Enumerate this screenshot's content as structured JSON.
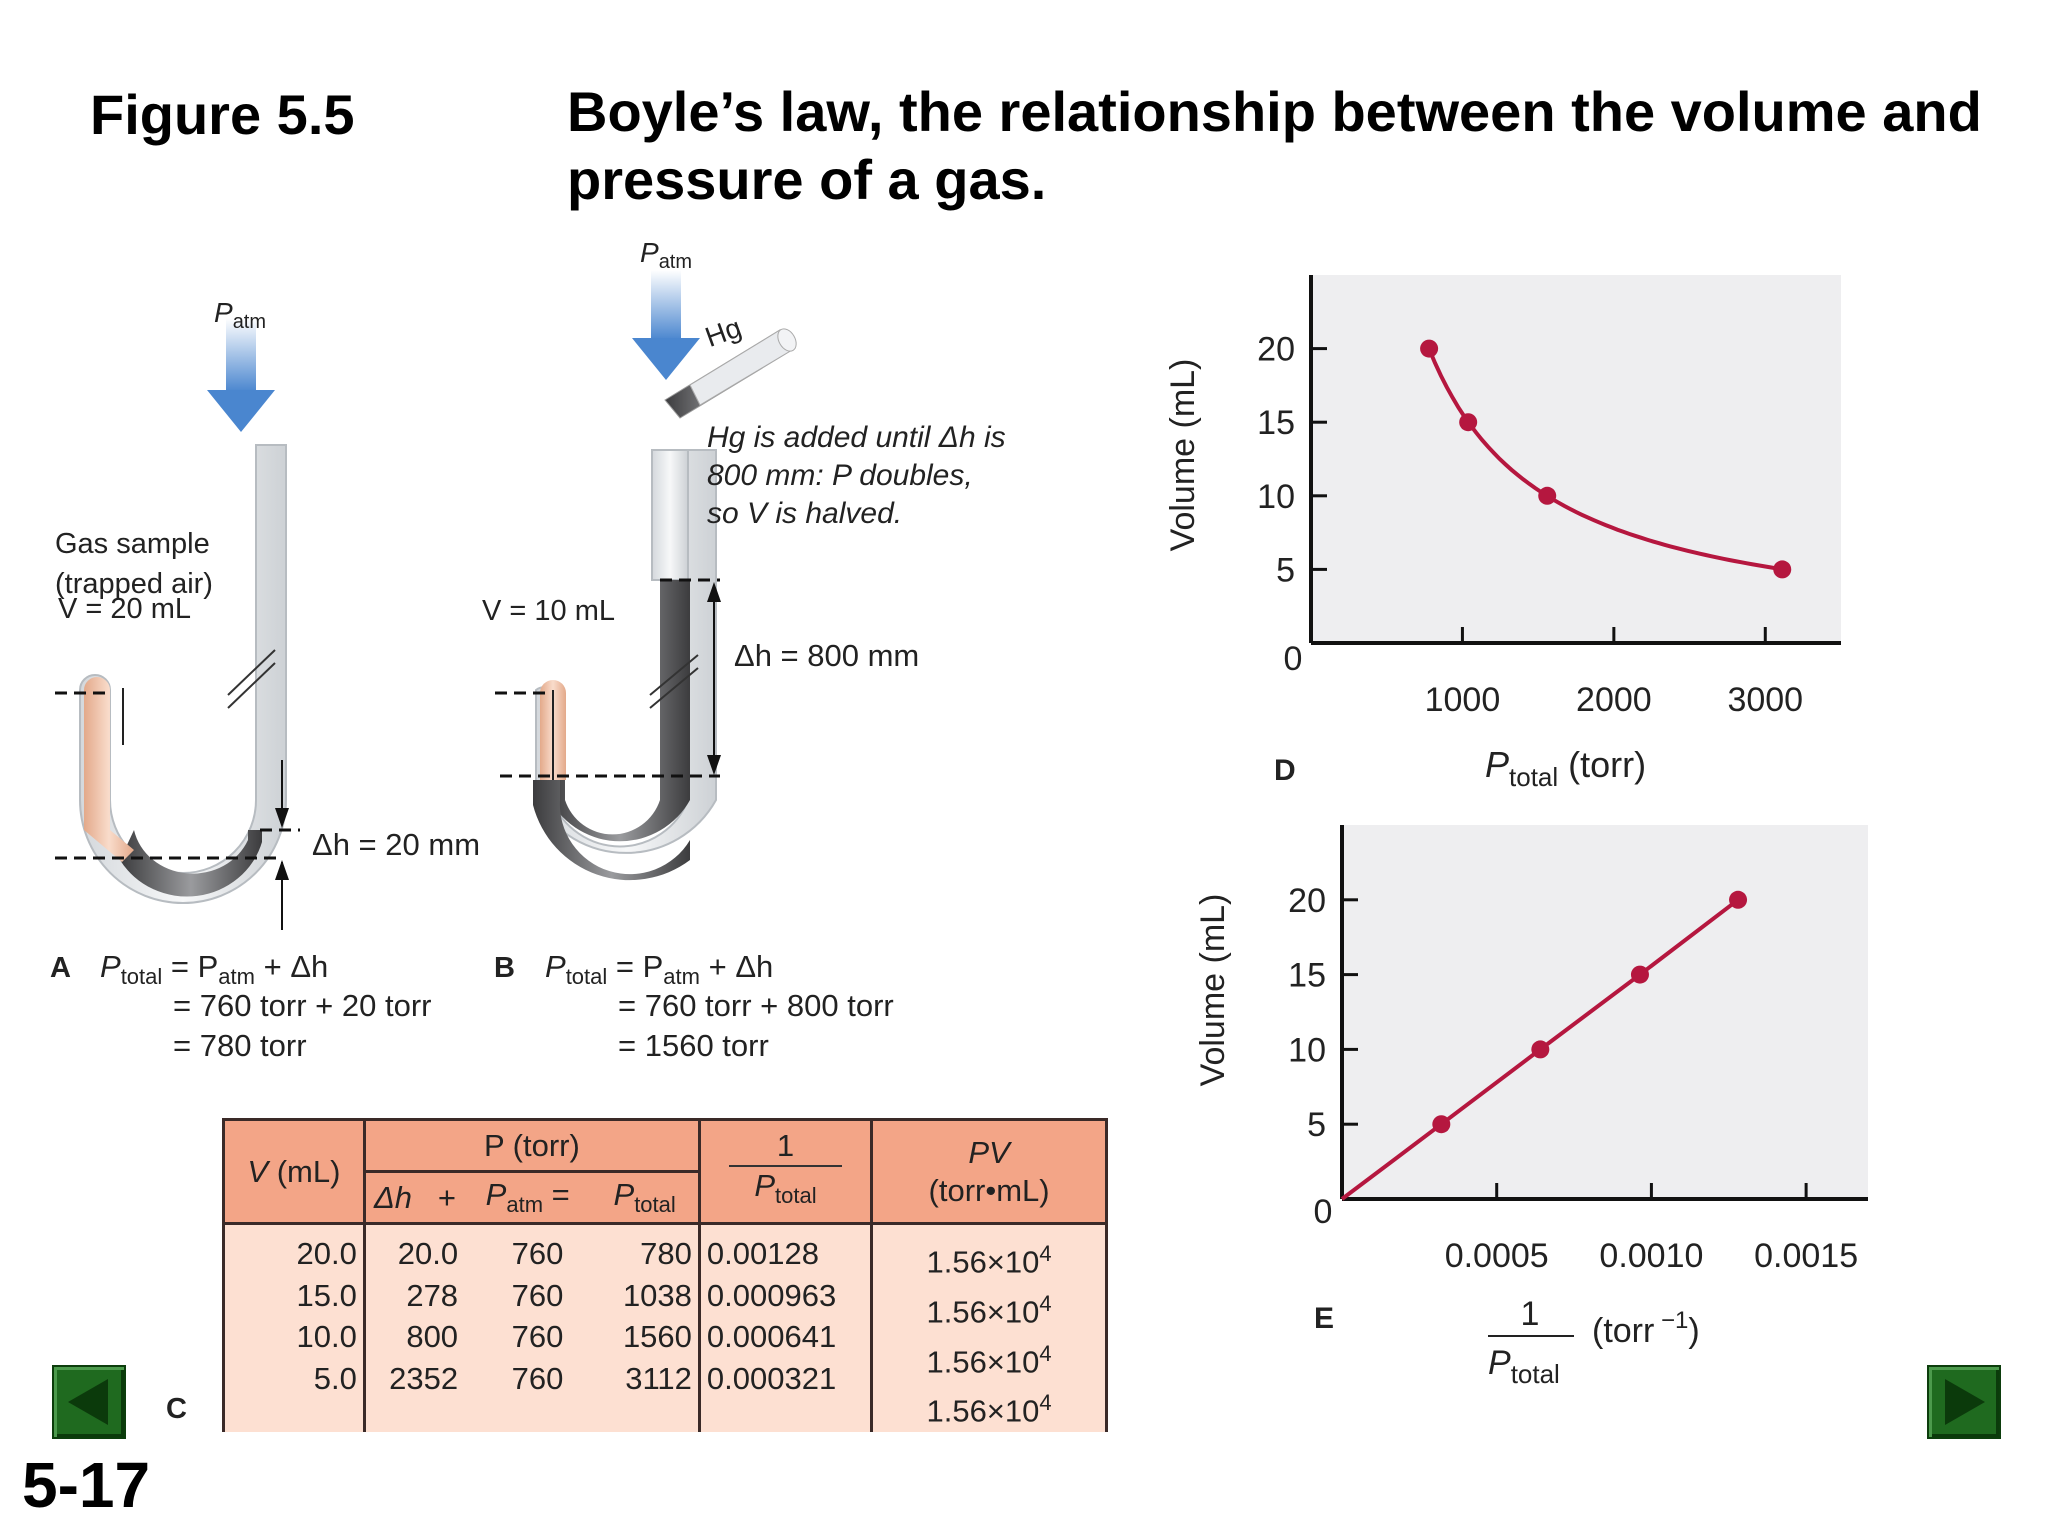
{
  "figure_label": "Figure 5.5",
  "figure_title": "Boyle’s law, the relationship between the volume and pressure of a gas.",
  "slide_number": "5-17",
  "panel_a": {
    "letter": "A",
    "patm": "P",
    "patm_sub": "atm",
    "gas_line1": "Gas sample",
    "gas_line2": "(trapped air)",
    "volume": "V = 20 mL",
    "dh": "Δh = 20 mm",
    "eq1": "P",
    "eq1_sub": "total",
    "eq1_rest": " = P",
    "eq1_sub2": "atm",
    "eq1_tail": " + Δh",
    "eq2": "= 760 torr + 20 torr",
    "eq3": "= 780 torr"
  },
  "panel_b": {
    "letter": "B",
    "patm": "P",
    "patm_sub": "atm",
    "hg": "Hg",
    "note1": "Hg is added until Δh is",
    "note2": "800 mm: P doubles,",
    "note3": "so V is halved.",
    "volume": "V = 10 mL",
    "dh": "Δh = 800 mm",
    "eq1": "P",
    "eq1_sub": "total",
    "eq1_rest": " = P",
    "eq1_sub2": "atm",
    "eq1_tail": " + Δh",
    "eq2": "= 760 torr + 800 torr",
    "eq3": "= 1560 torr"
  },
  "table": {
    "letter": "C",
    "h_v": "V (mL)",
    "h_p": "P (torr)",
    "h_dh": "Δh",
    "h_plus": "+",
    "h_patm": "P",
    "h_patm_sub": "atm",
    "h_eq": "=",
    "h_ptot": "P",
    "h_ptot_sub": "total",
    "h_inv_num": "1",
    "h_inv_den": "P",
    "h_inv_sub": "total",
    "h_pv": "PV",
    "h_pv_units": "(torr•mL)",
    "v": [
      "20.0",
      "15.0",
      "10.0",
      "5.0"
    ],
    "dh": [
      "20.0",
      "278",
      "800",
      "2352"
    ],
    "patm": [
      "760",
      "760",
      "760",
      "760"
    ],
    "ptot": [
      "780",
      "1038",
      "1560",
      "3112"
    ],
    "inv": [
      "0.00128",
      "0.000963",
      "0.000641",
      "0.000321"
    ],
    "pv_mant": "1.56×10",
    "pv_exp": "4"
  },
  "chart_data": [
    {
      "type": "line",
      "panel": "D",
      "xlabel": "P",
      "xlabel_sub": "total",
      "xlabel_units": " (torr)",
      "ylabel": "Volume (mL)",
      "xlim": [
        0,
        3500
      ],
      "ylim": [
        0,
        25
      ],
      "xticks": [
        "1000",
        "2000",
        "3000"
      ],
      "yticks": [
        "5",
        "10",
        "15",
        "20"
      ],
      "origin": "0",
      "points": [
        [
          780,
          20
        ],
        [
          1038,
          15
        ],
        [
          1560,
          10
        ],
        [
          3112,
          5
        ]
      ],
      "color": "#b5173f",
      "grid": false
    },
    {
      "type": "line",
      "panel": "E",
      "xlabel_num": "1",
      "xlabel_den": "P",
      "xlabel_sub": "total",
      "xlabel_units": "(torr",
      "xlabel_exp": " −1",
      "xlabel_close": ")",
      "ylabel": "Volume (mL)",
      "xlim": [
        0,
        0.0017
      ],
      "ylim": [
        0,
        25
      ],
      "xticks": [
        "0.0005",
        "0.0010",
        "0.0015"
      ],
      "yticks": [
        "5",
        "10",
        "15",
        "20"
      ],
      "origin": "0",
      "points": [
        [
          0.000321,
          5
        ],
        [
          0.000641,
          10
        ],
        [
          0.000963,
          15
        ],
        [
          0.00128,
          20
        ]
      ],
      "line_from_origin": true,
      "color": "#b5173f",
      "grid": false
    }
  ],
  "colors": {
    "curve": "#b5173f",
    "plot_bg": "#eeeef0",
    "table_header": "#f3a587",
    "table_body": "#fde0d2",
    "nav_green": "#1f6a1f"
  },
  "nav": {
    "prev_icon": "arrow-left-icon",
    "next_icon": "arrow-right-icon"
  }
}
